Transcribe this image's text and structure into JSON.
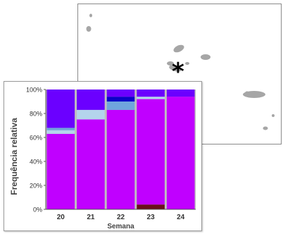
{
  "map": {
    "marker_symbol": "*",
    "island_color": "#a6a6a6",
    "border_color": "#8a8a8a"
  },
  "chart_data": {
    "type": "bar",
    "stacked": true,
    "percent": true,
    "categories": [
      "20",
      "21",
      "22",
      "23",
      "24"
    ],
    "series": [
      {
        "color": "#6b0d1c",
        "values": [
          0,
          0,
          0,
          4,
          0
        ]
      },
      {
        "color": "#c000ff",
        "values": [
          63,
          75,
          83,
          88,
          94
        ]
      },
      {
        "color": "#b4d4ec",
        "values": [
          3,
          8,
          0,
          2,
          0
        ]
      },
      {
        "color": "#6fa5dd",
        "values": [
          2,
          0,
          7,
          0,
          0
        ]
      },
      {
        "color": "#0a00c8",
        "values": [
          0,
          0,
          4,
          0,
          0
        ]
      },
      {
        "color": "#6b00ff",
        "values": [
          32,
          17,
          6,
          6,
          6
        ]
      }
    ],
    "ylim": [
      0,
      100
    ],
    "yticks": [
      "0%",
      "20%",
      "40%",
      "60%",
      "80%",
      "100%"
    ],
    "xlabel": "Semana",
    "ylabel": "Frequência relativa",
    "grid": false,
    "plot_background": "#bfbfbf"
  }
}
